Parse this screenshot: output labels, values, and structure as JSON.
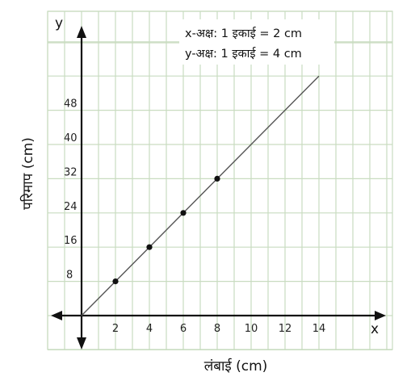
{
  "chart_data": {
    "type": "line",
    "xlabel": "लंबाई (cm)",
    "ylabel": "परिमाप (cm)",
    "x_axis_letter": "x",
    "y_axis_letter": "y",
    "x_ticks": [
      2,
      4,
      6,
      8,
      10,
      12,
      14
    ],
    "y_ticks": [
      8,
      16,
      24,
      32,
      40,
      48
    ],
    "xlim": [
      0,
      14
    ],
    "ylim": [
      0,
      56
    ],
    "grid": true,
    "scale_notes": [
      "x-अक्ष: 1 इकाई = 2 cm",
      "y-अक्ष: 1 इकाई = 4 cm"
    ],
    "series": [
      {
        "x": [
          0,
          2,
          4,
          6,
          8,
          14
        ],
        "y": [
          0,
          8,
          16,
          24,
          32,
          56
        ],
        "marked_points": [
          [
            2,
            8
          ],
          [
            4,
            16
          ],
          [
            6,
            24
          ],
          [
            8,
            32
          ]
        ]
      }
    ],
    "colors": {
      "grid": "#c9dcc0",
      "axis": "#111111",
      "line": "#555555",
      "point": "#111111"
    }
  }
}
